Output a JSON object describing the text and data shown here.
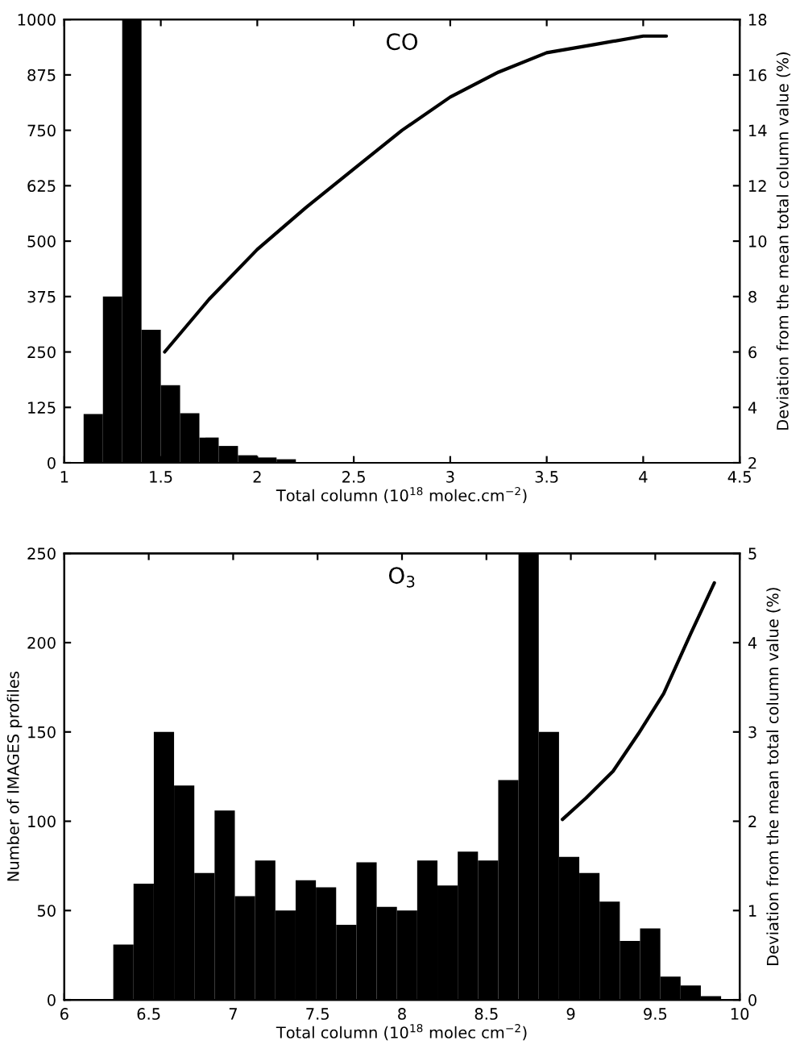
{
  "chart_data": [
    {
      "type": "histogram",
      "title": "CO",
      "xlabel": "Total column (10$^{18}$ molec.cm$^{−2}$)",
      "y2label": "Deviation from the mean total column value (%)",
      "xlim": [
        1,
        4.5
      ],
      "xticks": [
        1,
        1.5,
        2,
        2.5,
        3,
        3.5,
        4,
        4.5
      ],
      "ylim": [
        0,
        1000
      ],
      "yticks": [
        0,
        125,
        250,
        375,
        500,
        625,
        750,
        875,
        1000
      ],
      "y2lim": [
        2,
        18
      ],
      "y2ticks": [
        2,
        4,
        6,
        8,
        10,
        12,
        14,
        16,
        18
      ],
      "grid": false,
      "legend": false,
      "series": [
        {
          "color": "#000000",
          "bins": [
            1.1,
            1.2,
            1.3,
            1.4,
            1.5,
            1.6,
            1.7,
            1.8,
            1.9,
            2.0,
            2.1,
            2.2,
            2.3,
            2.4,
            2.5,
            2.6,
            2.7,
            2.8,
            2.9,
            3.0
          ],
          "values": [
            110,
            375,
            1000,
            300,
            175,
            112,
            57,
            38,
            17,
            12,
            8,
            null,
            null,
            null,
            null,
            null,
            null,
            null,
            null
          ]
        },
        {
          "type": "line",
          "axis": "y2",
          "color": "#000000",
          "x": [
            1.52,
            1.75,
            2,
            2.25,
            2.5,
            2.75,
            3,
            3.25,
            3.5,
            3.75,
            4,
            4.12
          ],
          "values": [
            6.0,
            7.9,
            9.7,
            11.2,
            12.6,
            14.0,
            15.2,
            16.1,
            16.8,
            17.1,
            17.4,
            17.4
          ]
        }
      ]
    },
    {
      "type": "histogram",
      "title": "O$_{3}$",
      "xlabel": "Total column (10$^{18}$ molec cm$^{−2}$)",
      "ylabel": "Number of IMAGES profiles",
      "y2label": "Deviation from the mean total column value (%)",
      "xlim": [
        6,
        10
      ],
      "xticks": [
        6,
        6.5,
        7,
        7.5,
        8,
        8.5,
        9,
        9.5,
        10
      ],
      "ylim": [
        0,
        250
      ],
      "yticks": [
        0,
        50,
        100,
        150,
        200,
        250
      ],
      "y2lim": [
        0,
        5
      ],
      "y2ticks": [
        0,
        1,
        2,
        3,
        4,
        5
      ],
      "grid": false,
      "legend": false,
      "series": [
        {
          "color": "#000000",
          "bins": [
            6.29,
            6.41,
            6.53,
            6.65,
            6.77,
            6.89,
            7.01,
            7.13,
            7.25,
            7.37,
            7.49,
            7.61,
            7.73,
            7.85,
            7.97,
            8.09,
            8.21,
            8.33,
            8.45,
            8.57,
            8.69,
            8.81,
            8.93,
            9.05,
            9.17,
            9.29,
            9.41,
            9.53,
            9.65,
            9.77,
            9.89
          ],
          "values": [
            31,
            65,
            150,
            120,
            71,
            106,
            58,
            78,
            50,
            67,
            63,
            42,
            77,
            52,
            50,
            78,
            64,
            83,
            78,
            123,
            250,
            150,
            80,
            71,
            55,
            33,
            40,
            13,
            8,
            2
          ]
        },
        {
          "type": "line",
          "axis": "y2",
          "color": "#000000",
          "x": [
            8.95,
            9.09,
            9.25,
            9.4,
            9.55,
            9.71,
            9.85
          ],
          "values": [
            2.02,
            2.26,
            2.56,
            2.98,
            3.43,
            4.1,
            4.67
          ]
        }
      ]
    }
  ]
}
